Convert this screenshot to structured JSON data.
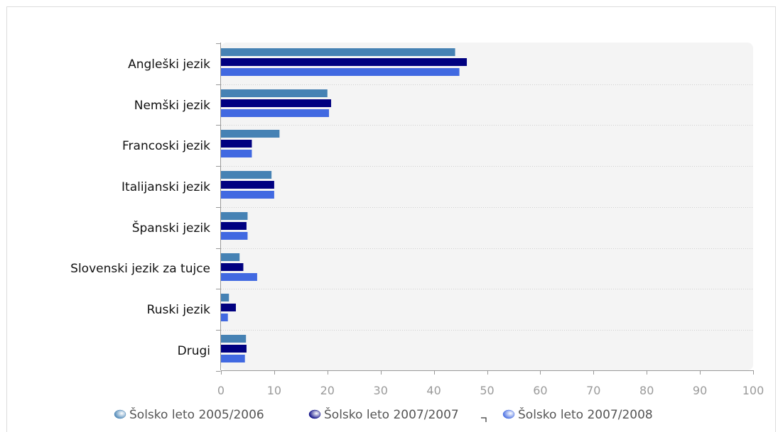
{
  "chart_data": {
    "type": "bar",
    "orientation": "horizontal",
    "categories": [
      "Angleški jezik",
      "Nemški jezik",
      "Francoski jezik",
      "Italijanski jezik",
      "Španski jezik",
      "Slovenski jezik za tujce",
      "Ruski jezik",
      "Drugi"
    ],
    "series": [
      {
        "name": "Šolsko leto 2005/2006",
        "color": "#4682b4",
        "values": [
          44,
          20,
          11,
          9.5,
          5,
          3.5,
          1.5,
          4.7
        ]
      },
      {
        "name": "Šolsko leto 2007/2007",
        "color": "#000080",
        "values": [
          46.2,
          20.7,
          5.8,
          10,
          4.8,
          4.2,
          2.8,
          4.8
        ]
      },
      {
        "name": "Šolsko leto 2007/2008",
        "color": "#4169e1",
        "values": [
          44.8,
          20.3,
          5.8,
          10,
          5,
          6.8,
          1.3,
          4.5
        ]
      }
    ],
    "x_ticks": [
      0,
      10,
      20,
      30,
      40,
      50,
      60,
      70,
      80,
      90,
      100
    ],
    "xlim": [
      0,
      100
    ],
    "grid": true,
    "legend_position": "bottom",
    "title": "",
    "xlabel": "",
    "ylabel": ""
  }
}
